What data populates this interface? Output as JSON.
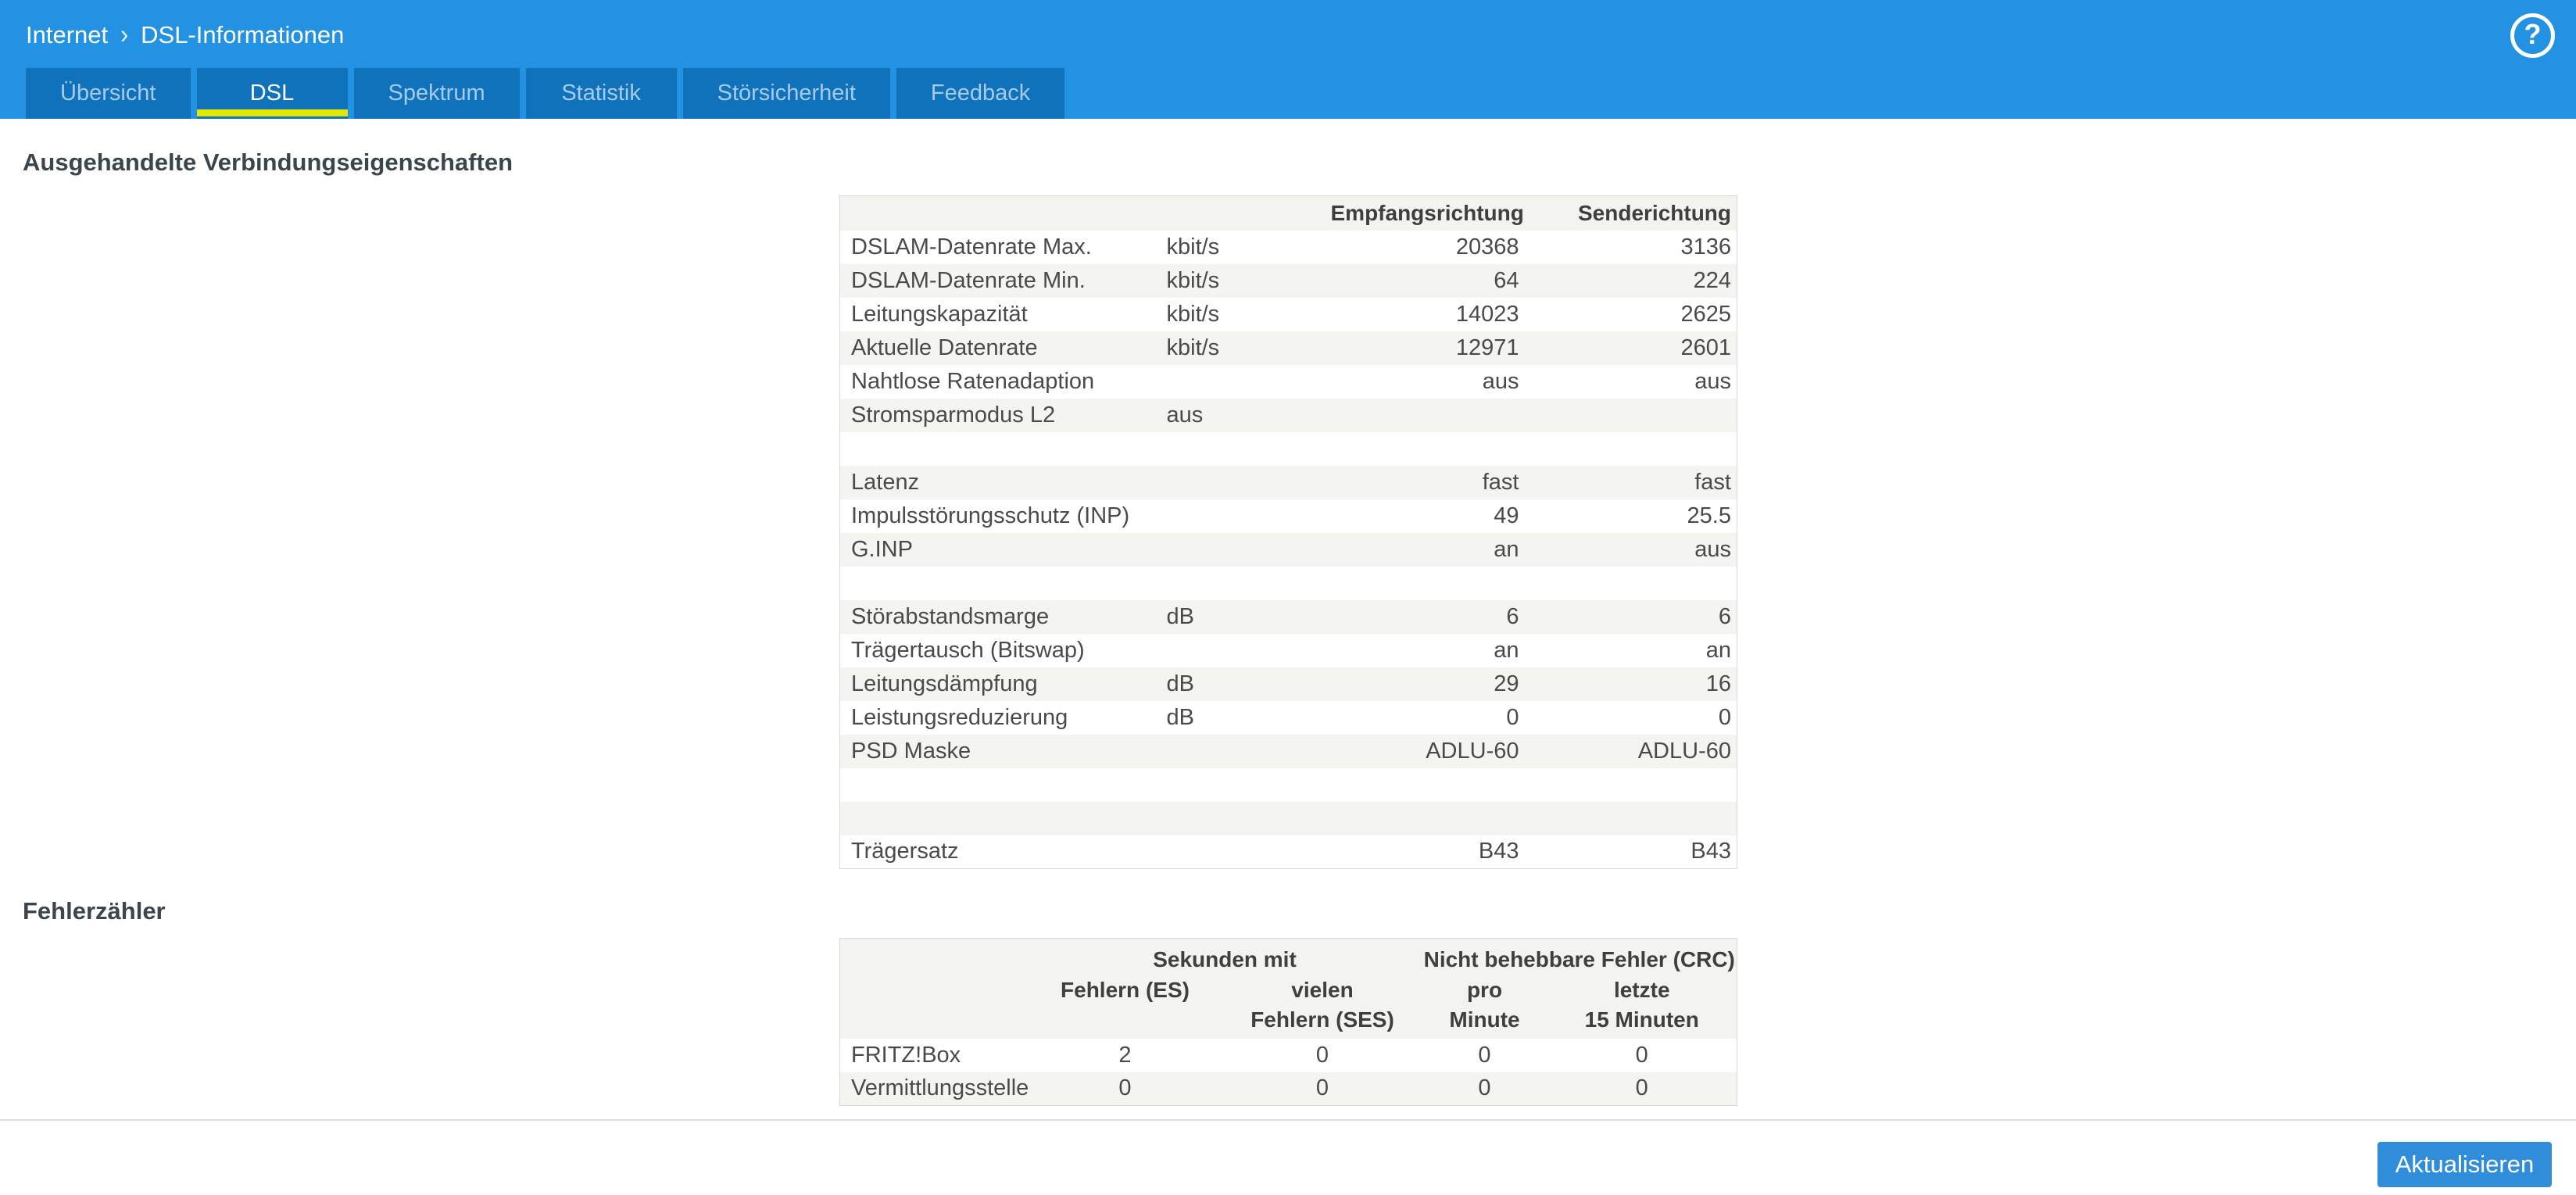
{
  "header": {
    "breadcrumb": {
      "section": "Internet",
      "separator": "›",
      "page": "DSL-Informationen"
    },
    "tabs": [
      {
        "label": "Übersicht",
        "active": false
      },
      {
        "label": "DSL",
        "active": true
      },
      {
        "label": "Spektrum",
        "active": false
      },
      {
        "label": "Statistik",
        "active": false
      },
      {
        "label": "Störsicherheit",
        "active": false
      },
      {
        "label": "Feedback",
        "active": false
      }
    ],
    "help_icon": "?"
  },
  "colors": {
    "header_blue": "#2492e2",
    "tab_blue": "#0f72bb",
    "active_tab_underline": "#e2e700",
    "button_blue": "#2f8dd9",
    "zebra_gray": "#f4f4f1"
  },
  "connection_section": {
    "heading": "Ausgehandelte Verbindungseigenschaften",
    "col_headers": {
      "rx": "Empfangsrichtung",
      "tx": "Senderichtung"
    },
    "rows": [
      {
        "label": "DSLAM-Datenrate Max.",
        "unit": "kbit/s",
        "rx": "20368",
        "tx": "3136"
      },
      {
        "label": "DSLAM-Datenrate Min.",
        "unit": "kbit/s",
        "rx": "64",
        "tx": "224"
      },
      {
        "label": "Leitungskapazität",
        "unit": "kbit/s",
        "rx": "14023",
        "tx": "2625"
      },
      {
        "label": "Aktuelle Datenrate",
        "unit": "kbit/s",
        "rx": "12971",
        "tx": "2601"
      },
      {
        "label": "Nahtlose Ratenadaption",
        "unit": "",
        "rx": "aus",
        "tx": "aus"
      },
      {
        "label": "Stromsparmodus L2",
        "unit": "aus",
        "rx": "",
        "tx": ""
      },
      {
        "label": "",
        "unit": "",
        "rx": "",
        "tx": ""
      },
      {
        "label": "Latenz",
        "unit": "",
        "rx": "fast",
        "tx": "fast"
      },
      {
        "label": "Impulsstörungsschutz (INP)",
        "unit": "",
        "rx": "49",
        "tx": "25.5"
      },
      {
        "label": "G.INP",
        "unit": "",
        "rx": "an",
        "tx": "aus"
      },
      {
        "label": "",
        "unit": "",
        "rx": "",
        "tx": ""
      },
      {
        "label": "Störabstandsmarge",
        "unit": "dB",
        "rx": "6",
        "tx": "6"
      },
      {
        "label": "Trägertausch (Bitswap)",
        "unit": "",
        "rx": "an",
        "tx": "an"
      },
      {
        "label": "Leitungsdämpfung",
        "unit": "dB",
        "rx": "29",
        "tx": "16"
      },
      {
        "label": "Leistungsreduzierung",
        "unit": "dB",
        "rx": "0",
        "tx": "0"
      },
      {
        "label": "PSD Maske",
        "unit": "",
        "rx": "ADLU-60",
        "tx": "ADLU-60"
      },
      {
        "label": "",
        "unit": "",
        "rx": "",
        "tx": ""
      },
      {
        "label": "",
        "unit": "",
        "rx": "",
        "tx": ""
      },
      {
        "label": "Trägersatz",
        "unit": "",
        "rx": "B43",
        "tx": "B43"
      }
    ]
  },
  "error_section": {
    "heading": "Fehlerzähler",
    "group_headers": {
      "seconds": "Sekunden mit",
      "crc": "Nicht behebbare Fehler (CRC)"
    },
    "sub_headers": {
      "es_line1": "Fehlern (ES)",
      "ses_line1": "vielen",
      "ses_line2": "Fehlern (SES)",
      "crc_min_line1": "pro",
      "crc_min_line2": "Minute",
      "crc_15_line1": "letzte",
      "crc_15_line2": "15 Minuten"
    },
    "rows": [
      {
        "label": "FRITZ!Box",
        "es": "2",
        "ses": "0",
        "crc_per_minute": "0",
        "crc_last_15_min": "0"
      },
      {
        "label": "Vermittlungsstelle",
        "es": "0",
        "ses": "0",
        "crc_per_minute": "0",
        "crc_last_15_min": "0"
      }
    ]
  },
  "footer": {
    "refresh_button": "Aktualisieren"
  }
}
